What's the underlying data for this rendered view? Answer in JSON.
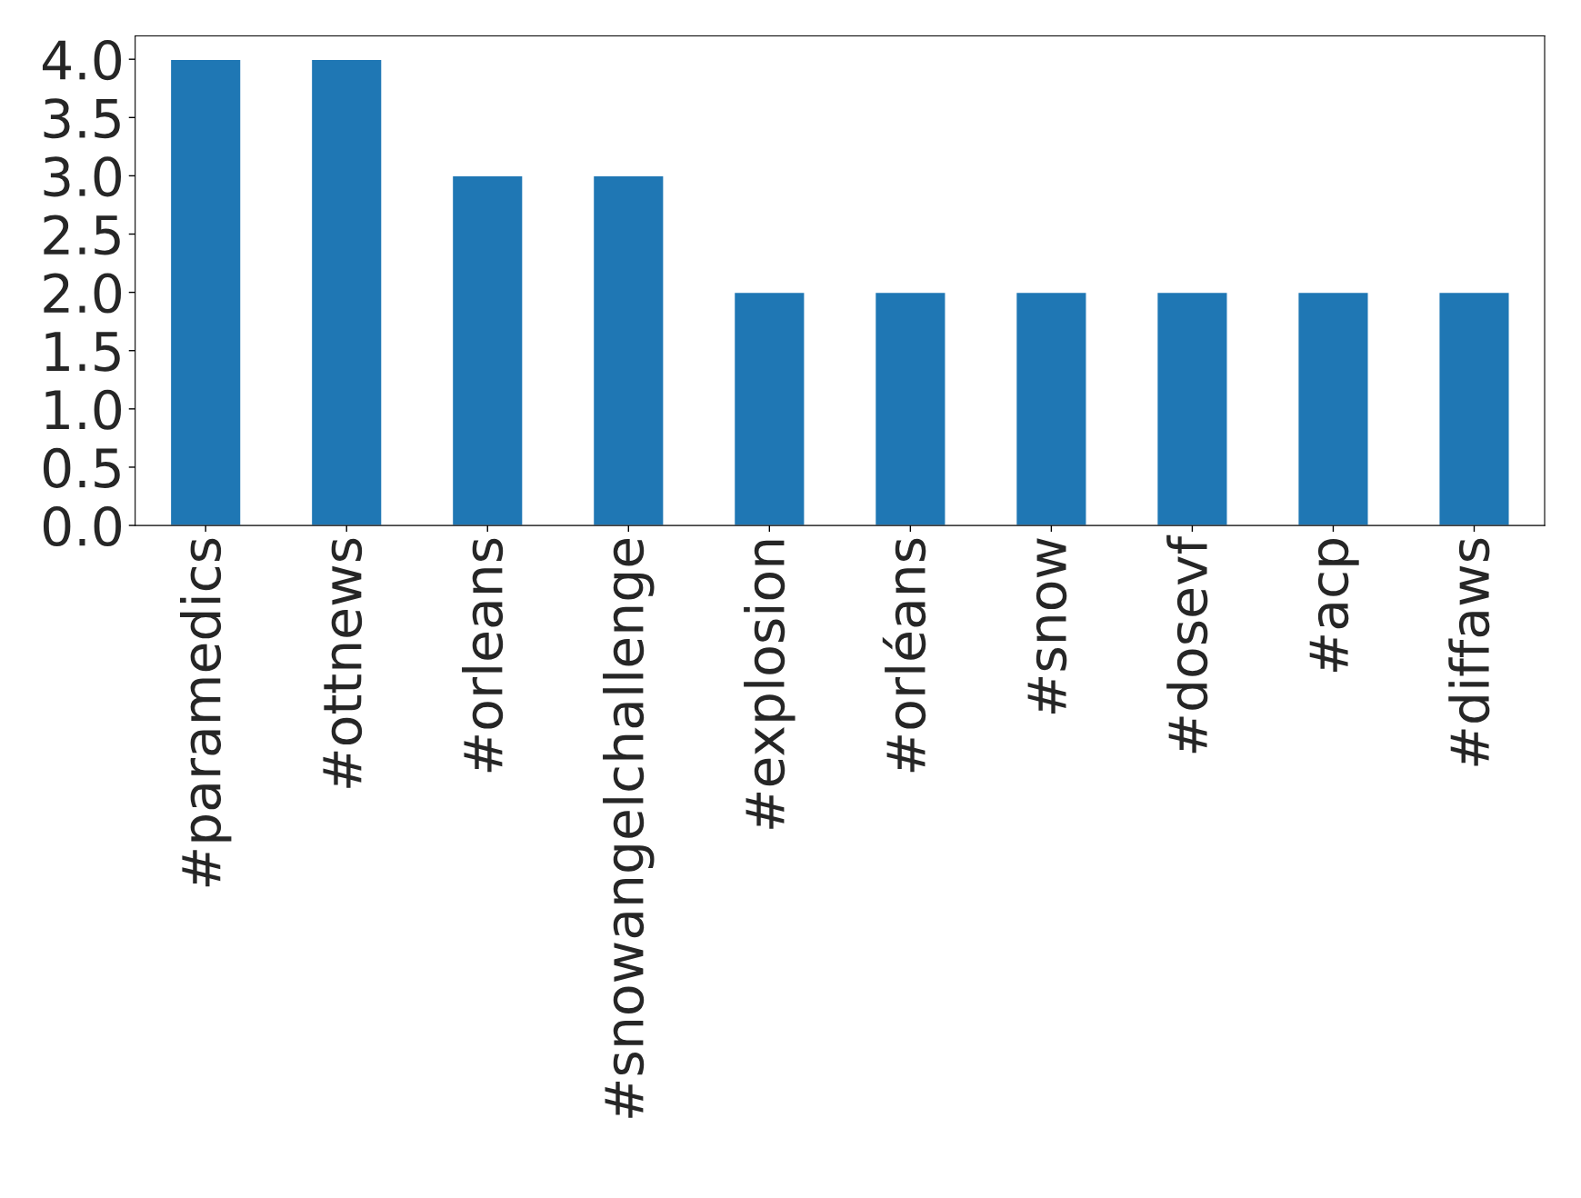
{
  "chart_data": {
    "type": "bar",
    "categories": [
      "#paramedics",
      "#ottnews",
      "#orleans",
      "#snowangelchallenge",
      "#explosion",
      "#orléans",
      "#snow",
      "#dosevf",
      "#acp",
      "#diffaws"
    ],
    "values": [
      4,
      4,
      3,
      3,
      2,
      2,
      2,
      2,
      2,
      2
    ],
    "color": "#1f77b4",
    "ylim": [
      0,
      4.2
    ],
    "yticks": [
      {
        "value": 0,
        "label": "0.0"
      },
      {
        "value": 0.5,
        "label": "0.5"
      },
      {
        "value": 1,
        "label": "1.0"
      },
      {
        "value": 1.5,
        "label": "1.5"
      },
      {
        "value": 2,
        "label": "2.0"
      },
      {
        "value": 2.5,
        "label": "2.5"
      },
      {
        "value": 3,
        "label": "3.0"
      },
      {
        "value": 3.5,
        "label": "3.5"
      },
      {
        "value": 4,
        "label": "4.0"
      }
    ],
    "grid": false,
    "legend": false
  }
}
